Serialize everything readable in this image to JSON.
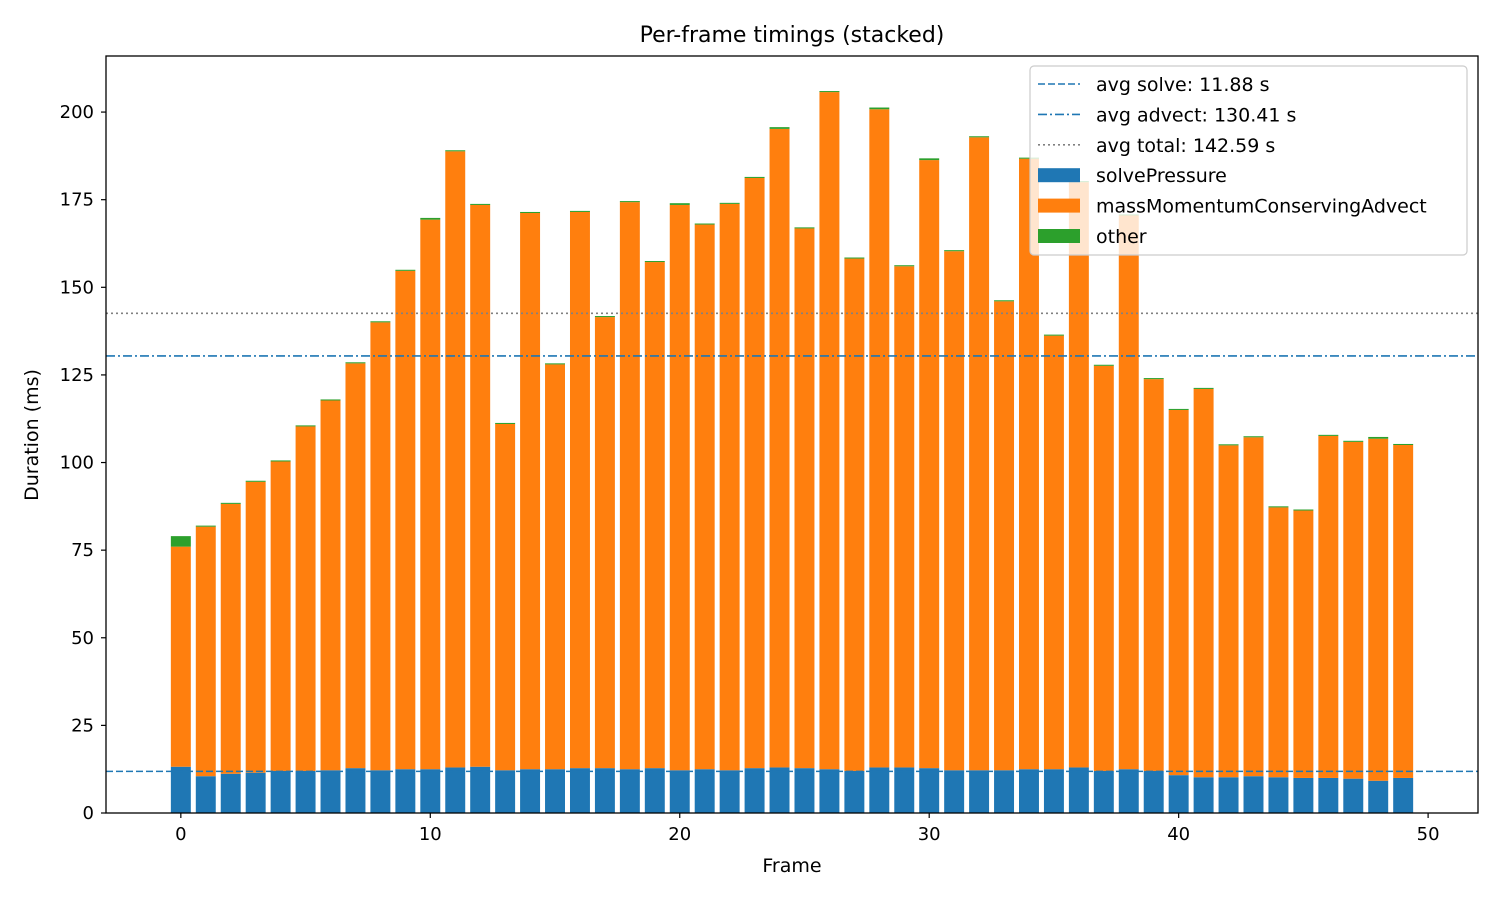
{
  "chart_data": {
    "type": "bar",
    "stacked": true,
    "title": "Per-frame timings (stacked)",
    "xlabel": "Frame",
    "ylabel": "Duration (ms)",
    "xlim": [
      -3,
      52
    ],
    "ylim": [
      0,
      216
    ],
    "x_ticks": [
      0,
      10,
      20,
      30,
      40,
      50
    ],
    "y_ticks": [
      0,
      25,
      50,
      75,
      100,
      125,
      150,
      175,
      200
    ],
    "grid": false,
    "legend_position": "top-right",
    "x": [
      0,
      1,
      2,
      3,
      4,
      5,
      6,
      7,
      8,
      9,
      10,
      11,
      12,
      13,
      14,
      15,
      16,
      17,
      18,
      19,
      20,
      21,
      22,
      23,
      24,
      25,
      26,
      27,
      28,
      29,
      30,
      31,
      32,
      33,
      34,
      35,
      36,
      37,
      38,
      39,
      40,
      41,
      42,
      43,
      44,
      45,
      46,
      47,
      48,
      49
    ],
    "series": [
      {
        "name": "solvePressure",
        "color": "#1f77b4",
        "values": [
          13.2,
          10.5,
          11.2,
          11.5,
          12.0,
          12.0,
          12.2,
          12.8,
          12.2,
          12.5,
          12.5,
          13.0,
          13.2,
          12.2,
          12.5,
          12.5,
          12.8,
          12.8,
          12.5,
          12.8,
          12.2,
          12.5,
          12.2,
          12.8,
          13.0,
          12.8,
          12.5,
          12.0,
          13.0,
          13.0,
          12.8,
          12.2,
          12.2,
          12.2,
          12.5,
          12.5,
          13.0,
          12.0,
          12.5,
          12.0,
          10.8,
          10.2,
          10.2,
          10.5,
          10.2,
          10.0,
          10.0,
          9.8,
          9.2,
          10.0
        ]
      },
      {
        "name": "massMomentumConservingAdvect",
        "color": "#ff7f0e",
        "values": [
          62.8,
          71.2,
          77.0,
          83.0,
          88.3,
          98.3,
          105.5,
          115.5,
          127.8,
          142.2,
          156.8,
          175.8,
          160.3,
          98.8,
          158.7,
          115.5,
          158.7,
          128.7,
          161.8,
          144.4,
          161.3,
          155.4,
          161.6,
          168.4,
          182.2,
          154.0,
          193.2,
          146.2,
          187.8,
          143.0,
          173.5,
          148.1,
          180.6,
          133.8,
          174.2,
          123.7,
          167.0,
          115.6,
          158.0,
          111.8,
          104.2,
          110.8,
          94.7,
          96.7,
          77.0,
          76.3,
          97.6,
          96.1,
          97.6,
          95.0
        ]
      },
      {
        "name": "other",
        "color": "#2ca02c",
        "values": [
          3.0,
          0.3,
          0.3,
          0.3,
          0.3,
          0.3,
          0.3,
          0.3,
          0.3,
          0.3,
          0.5,
          0.3,
          0.3,
          0.3,
          0.3,
          0.3,
          0.3,
          0.3,
          0.3,
          0.3,
          0.5,
          0.3,
          0.3,
          0.3,
          0.5,
          0.3,
          0.3,
          0.3,
          0.5,
          0.3,
          0.5,
          0.3,
          0.3,
          0.3,
          0.3,
          0.3,
          0.3,
          0.3,
          0.3,
          0.3,
          0.3,
          0.3,
          0.3,
          0.3,
          0.3,
          0.3,
          0.3,
          0.3,
          0.5,
          0.3
        ]
      }
    ],
    "reference_lines": [
      {
        "label": "avg solve: 11.88 s",
        "value": 11.88,
        "style": "dashed",
        "color": "#1f77b4"
      },
      {
        "label": "avg advect: 130.41 s",
        "value": 130.41,
        "style": "dashdot",
        "color": "#1f77b4"
      },
      {
        "label": "avg total: 142.59 s",
        "value": 142.59,
        "style": "dotted",
        "color": "#808080"
      }
    ]
  }
}
